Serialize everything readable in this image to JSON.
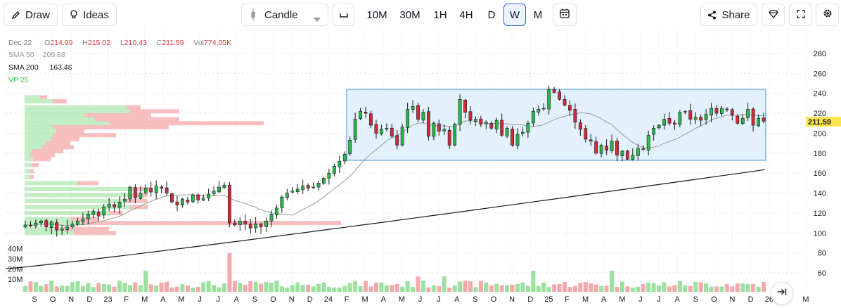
{
  "toolbar": {
    "draw_label": "Draw",
    "ideas_label": "Ideas",
    "chart_type": "Candle",
    "timeframes": [
      "10M",
      "30M",
      "1H",
      "4H",
      "D",
      "W",
      "M"
    ],
    "active_timeframe": "W",
    "share_label": "Share"
  },
  "legend": {
    "date": "Dec 22",
    "open_prefix": "O",
    "open": "214.99",
    "high_prefix": "H",
    "high": "215.02",
    "low_prefix": "L",
    "low": "210.43",
    "close_prefix": "C",
    "close": "211.59",
    "vol_prefix": "Vol",
    "vol": "774.05K",
    "sma50_label": "SMA 50",
    "sma50_value": "209.88",
    "sma200_label": "SMA 200",
    "sma200_value": "163.48",
    "vp_label": "VP 25"
  },
  "colors": {
    "up": "#22ab2e",
    "down": "#d32f3c",
    "up_body": "#2db84a",
    "down_body": "#d42a3a",
    "vol_up": "#9be29f",
    "vol_down": "#f5a9ac",
    "sma50": "#9a9a9a",
    "sma200": "#131722",
    "range_box_fill": "#ddeefc",
    "range_box_stroke": "#4a90d9",
    "last_price_bg": "#fbe54d"
  },
  "chart_data": {
    "type": "candlestick",
    "price_axis": [
      60,
      80,
      100,
      120,
      140,
      160,
      180,
      200,
      220,
      240,
      260,
      280
    ],
    "ylim": [
      48,
      292
    ],
    "volume_axis": [
      "10M",
      "20M",
      "30M",
      "40M"
    ],
    "time_axis": [
      "S",
      "O",
      "N",
      "D",
      "23",
      "F",
      "M",
      "A",
      "M",
      "J",
      "J",
      "A",
      "S",
      "O",
      "N",
      "D",
      "24",
      "F",
      "M",
      "A",
      "M",
      "J",
      "J",
      "A",
      "S",
      "O",
      "N",
      "D",
      "25",
      "F",
      "M",
      "A",
      "M",
      "J",
      "J",
      "A",
      "S",
      "O",
      "N",
      "D",
      "26",
      "F",
      "M"
    ],
    "last_price": "211.59",
    "closes": [
      108,
      107,
      110,
      112,
      106,
      111,
      103,
      104,
      106,
      109,
      112,
      114,
      119,
      122,
      117,
      126,
      129,
      126,
      131,
      134,
      146,
      135,
      140,
      145,
      141,
      147,
      145,
      140,
      131,
      128,
      134,
      131,
      138,
      133,
      135,
      139,
      142,
      146,
      148,
      110,
      108,
      112,
      109,
      105,
      109,
      106,
      112,
      119,
      125,
      136,
      140,
      142,
      144,
      147,
      145,
      146,
      150,
      155,
      160,
      167,
      172,
      179,
      193,
      214,
      222,
      220,
      208,
      200,
      204,
      205,
      197,
      188,
      206,
      224,
      227,
      214,
      221,
      197,
      210,
      202,
      204,
      188,
      209,
      234,
      221,
      213,
      214,
      209,
      211,
      205,
      213,
      198,
      205,
      188,
      199,
      201,
      210,
      222,
      224,
      225,
      244,
      241,
      234,
      228,
      223,
      211,
      204,
      194,
      192,
      180,
      188,
      183,
      192,
      178,
      182,
      174,
      178,
      185,
      184,
      198,
      205,
      208,
      214,
      210,
      209,
      221,
      222,
      214,
      216,
      213,
      219,
      225,
      220,
      225,
      224,
      218,
      210,
      215,
      224,
      208,
      215,
      212
    ],
    "volume_axis_values": [
      10,
      20,
      30,
      40
    ]
  }
}
